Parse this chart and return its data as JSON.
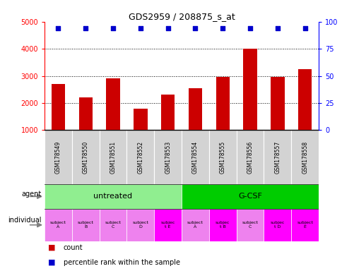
{
  "title": "GDS2959 / 208875_s_at",
  "samples": [
    "GSM178549",
    "GSM178550",
    "GSM178551",
    "GSM178552",
    "GSM178553",
    "GSM178554",
    "GSM178555",
    "GSM178556",
    "GSM178557",
    "GSM178558"
  ],
  "counts": [
    2700,
    2200,
    2900,
    1800,
    2300,
    2550,
    2950,
    4000,
    2950,
    3250
  ],
  "percentile_yval": 4750,
  "ylim_left": [
    1000,
    5000
  ],
  "ylim_right": [
    0,
    100
  ],
  "yticks_left": [
    1000,
    2000,
    3000,
    4000,
    5000
  ],
  "yticks_right": [
    0,
    25,
    50,
    75,
    100
  ],
  "agent_groups": [
    {
      "label": "untreated",
      "start": 0,
      "end": 5,
      "color": "#90ee90"
    },
    {
      "label": "G-CSF",
      "start": 5,
      "end": 10,
      "color": "#00cc00"
    }
  ],
  "individual_labels": [
    "subject\nA",
    "subject\nB",
    "subject\nC",
    "subject\nD",
    "subjec\nt E",
    "subject\nA",
    "subjec\nt B",
    "subject\nC",
    "subjec\nt D",
    "subject\nE"
  ],
  "individual_colors": [
    "#ee82ee",
    "#ee82ee",
    "#ee82ee",
    "#ee82ee",
    "#ff00ff",
    "#ee82ee",
    "#ff00ff",
    "#ee82ee",
    "#ff00ff",
    "#ff00ff"
  ],
  "bar_color": "#cc0000",
  "dot_color": "#0000cc",
  "bar_width": 0.5,
  "grid_color": "black",
  "grid_style": "dotted",
  "sample_cell_color": "#d3d3d3",
  "legend_count_color": "#cc0000",
  "legend_dot_color": "#0000cc",
  "n": 10
}
